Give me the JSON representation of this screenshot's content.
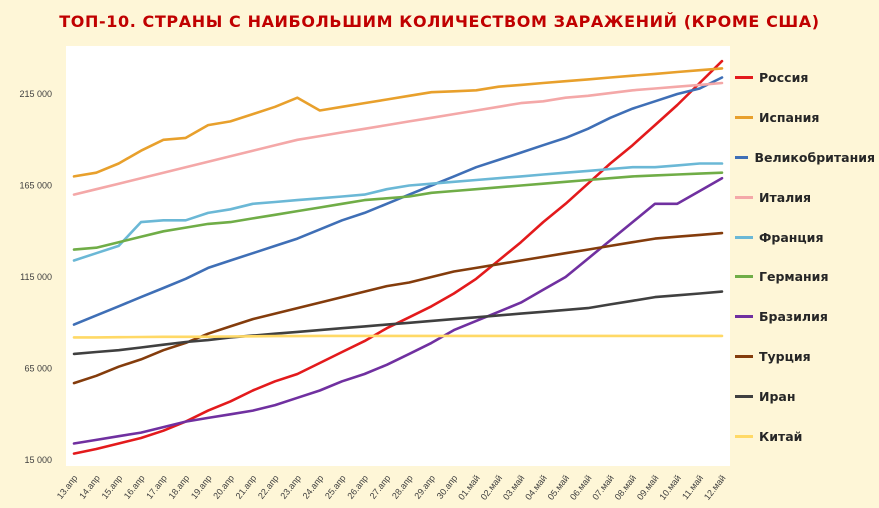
{
  "chart_data": {
    "type": "line",
    "title": "ТОП-10. СТРАНЫ С НАИБОЛЬШИМ КОЛИЧЕСТВОМ ЗАРАЖЕНИЙ (КРОМЕ США)",
    "xlabel": "",
    "ylabel": "",
    "ylim": [
      15000,
      235000
    ],
    "yticks": [
      "15 000",
      "65 000",
      "115 000",
      "165 000",
      "215 000"
    ],
    "y_tick_values": [
      15000,
      65000,
      115000,
      165000,
      215000
    ],
    "grid": false,
    "legend_position": "right",
    "categories": [
      "13.апр",
      "14.апр",
      "15.апр",
      "16.апр",
      "17.апр",
      "18.апр",
      "19.апр",
      "20.апр",
      "21.апр",
      "22.апр",
      "23.апр",
      "24.апр",
      "25.апр",
      "26.апр",
      "27.апр",
      "28.апр",
      "29.апр",
      "30.апр",
      "01.май",
      "02.май",
      "03.май",
      "04.май",
      "05.май",
      "06.май",
      "07.май",
      "08.май",
      "09.май",
      "10.май",
      "11.май",
      "12.май"
    ],
    "series": [
      {
        "name": "Россия",
        "color": "#E31A1C",
        "values": [
          18500,
          21000,
          24000,
          27000,
          31000,
          36000,
          42000,
          47000,
          53000,
          58000,
          62000,
          68000,
          74000,
          80000,
          87000,
          93000,
          99000,
          106000,
          114000,
          124000,
          134000,
          145000,
          155000,
          166000,
          177000,
          187000,
          198000,
          209000,
          221000,
          233000
        ]
      },
      {
        "name": "Испания",
        "color": "#E8A02C",
        "values": [
          170000,
          172000,
          177000,
          184000,
          190000,
          191000,
          198000,
          200000,
          204000,
          208000,
          213000,
          206000,
          208000,
          210000,
          212000,
          214000,
          216000,
          216500,
          217000,
          219000,
          220000,
          221000,
          222000,
          223000,
          224000,
          225000,
          226000,
          227000,
          228000,
          229000
        ]
      },
      {
        "name": "Великобритания",
        "color": "#3F6FB6",
        "values": [
          89000,
          94000,
          99000,
          104000,
          109000,
          114000,
          120000,
          124000,
          128000,
          132000,
          136000,
          141000,
          146000,
          150000,
          155000,
          160000,
          165000,
          170000,
          175000,
          179000,
          183000,
          187000,
          191000,
          196000,
          202000,
          207000,
          211000,
          215000,
          218000,
          224000
        ]
      },
      {
        "name": "Италия",
        "color": "#F4A8A8",
        "values": [
          160000,
          163000,
          166000,
          169000,
          172000,
          175000,
          178000,
          181000,
          184000,
          187000,
          190000,
          192000,
          194000,
          196000,
          198000,
          200000,
          202000,
          204000,
          206000,
          208000,
          210000,
          211000,
          213000,
          214000,
          215500,
          217000,
          218000,
          219000,
          220000,
          221000
        ]
      },
      {
        "name": "Франция",
        "color": "#6BB8D6",
        "values": [
          124000,
          128000,
          132000,
          145000,
          146000,
          146000,
          150000,
          152000,
          155000,
          156000,
          157000,
          158000,
          159000,
          160000,
          163000,
          165000,
          166000,
          167000,
          168000,
          169000,
          170000,
          171000,
          172000,
          173000,
          174000,
          175000,
          175000,
          176000,
          177000,
          177000
        ]
      },
      {
        "name": "Германия",
        "color": "#70AD47",
        "values": [
          130000,
          131000,
          134000,
          137000,
          140000,
          142000,
          144000,
          145000,
          147000,
          149000,
          151000,
          153000,
          155000,
          157000,
          158000,
          159000,
          161000,
          162000,
          163000,
          164000,
          165000,
          166000,
          167000,
          168000,
          169000,
          170000,
          170500,
          171000,
          171500,
          172000
        ]
      },
      {
        "name": "Бразилия",
        "color": "#7030A0",
        "values": [
          24000,
          26000,
          28000,
          30000,
          33000,
          36000,
          38000,
          40000,
          42000,
          45000,
          49000,
          53000,
          58000,
          62000,
          67000,
          73000,
          79000,
          86000,
          91000,
          96000,
          101000,
          108000,
          115000,
          125000,
          135000,
          145000,
          155000,
          155000,
          162000,
          169000
        ]
      },
      {
        "name": "Турция",
        "color": "#843C0C",
        "values": [
          57000,
          61000,
          66000,
          70000,
          75000,
          79000,
          84000,
          88000,
          92000,
          95000,
          98000,
          101000,
          104000,
          107000,
          110000,
          112000,
          115000,
          118000,
          120000,
          122000,
          124000,
          126000,
          128000,
          130000,
          132000,
          134000,
          136000,
          137000,
          138000,
          139000
        ]
      },
      {
        "name": "Иран",
        "color": "#404040",
        "values": [
          73000,
          74000,
          75000,
          76500,
          78000,
          79500,
          80500,
          82000,
          83000,
          84000,
          85000,
          86000,
          87000,
          88000,
          89000,
          90000,
          91000,
          92000,
          93000,
          94000,
          95000,
          96000,
          97000,
          98000,
          100000,
          102000,
          104000,
          105000,
          106000,
          107000
        ]
      },
      {
        "name": "Китай",
        "color": "#FFD966",
        "values": [
          82000,
          82000,
          82100,
          82200,
          82300,
          82300,
          82400,
          82500,
          82600,
          82700,
          82700,
          82800,
          82800,
          82800,
          82800,
          82800,
          82800,
          82800,
          82800,
          82800,
          82800,
          82800,
          82800,
          82800,
          82800,
          82800,
          82800,
          82800,
          82800,
          82800
        ]
      }
    ]
  }
}
